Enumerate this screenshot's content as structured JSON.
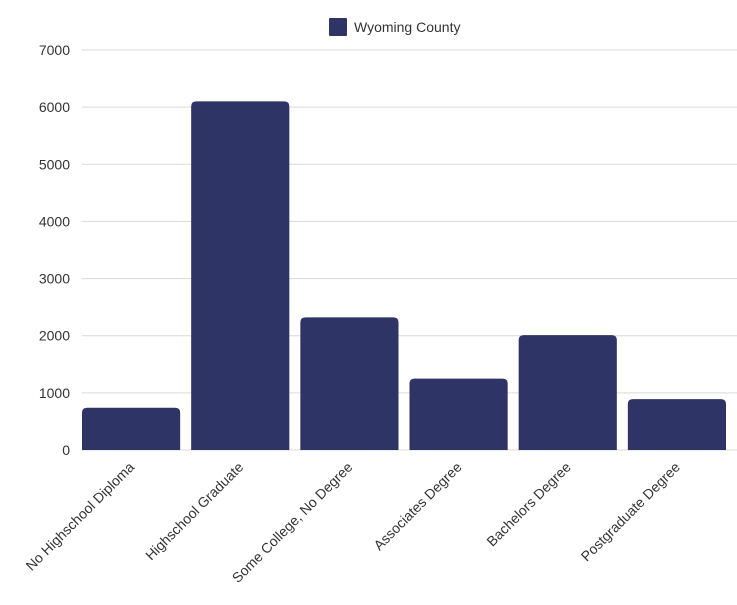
{
  "chart_data": {
    "type": "bar",
    "categories": [
      "No Highschool Diploma",
      "Highschool Graduate",
      "Some College, No Degree",
      "Associates Degree",
      "Bachelors Degree",
      "Postgraduate Degree"
    ],
    "series": [
      {
        "name": "Wyoming County",
        "values": [
          740,
          6100,
          2320,
          1250,
          2010,
          890
        ],
        "color": "#2e3466"
      }
    ],
    "ylim": [
      0,
      7000
    ],
    "yticks": [
      0,
      1000,
      2000,
      3000,
      4000,
      5000,
      6000,
      7000
    ],
    "grid": true,
    "legend_position": "top-center"
  }
}
